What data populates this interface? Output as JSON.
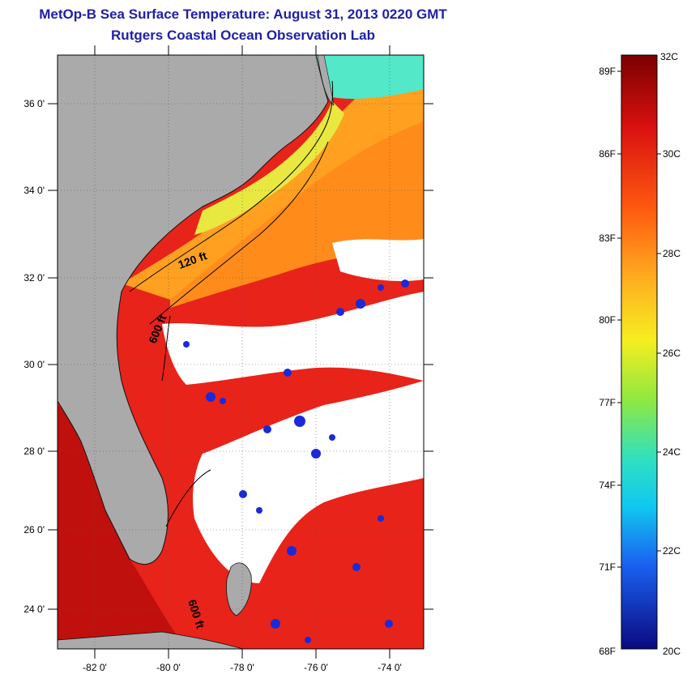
{
  "title": "MetOp-B Sea Surface Temperature:  August 31, 2013 0220 GMT",
  "subtitle": "Rutgers Coastal Ocean Observation Lab",
  "map": {
    "lon_range": [
      -83,
      -73
    ],
    "lat_range": [
      23,
      37
    ],
    "lat_ticks": [
      "36 0'",
      "34 0'",
      "32 0'",
      "30 0'",
      "28 0'",
      "26 0'",
      "24 0'"
    ],
    "lat_values": [
      36,
      34,
      32,
      30,
      28,
      26,
      24
    ],
    "lon_ticks": [
      "-82 0'",
      "-80 0'",
      "-78 0'",
      "-76 0'",
      "-74 0'"
    ],
    "lon_values": [
      -82,
      -80,
      -78,
      -76,
      -74
    ],
    "contour_labels": [
      "120 ft",
      "600 ft",
      "600 ft"
    ],
    "colors": {
      "land": "#aaaaaa",
      "cloud": "#ffffff",
      "warm": "#e8231a",
      "hot": "#c0100d",
      "orange": "#ff8c1a",
      "yellow": "#f5e11f",
      "cyan": "#52e8c8",
      "blue": "#1a2ad8"
    }
  },
  "colorbar": {
    "fahrenheit_labels": [
      "89F",
      "86F",
      "83F",
      "80F",
      "77F",
      "74F",
      "71F",
      "68F"
    ],
    "celsius_labels": [
      "32C",
      "30C",
      "28C",
      "26C",
      "24C",
      "22C",
      "20C"
    ],
    "range_c": [
      20,
      32
    ]
  }
}
